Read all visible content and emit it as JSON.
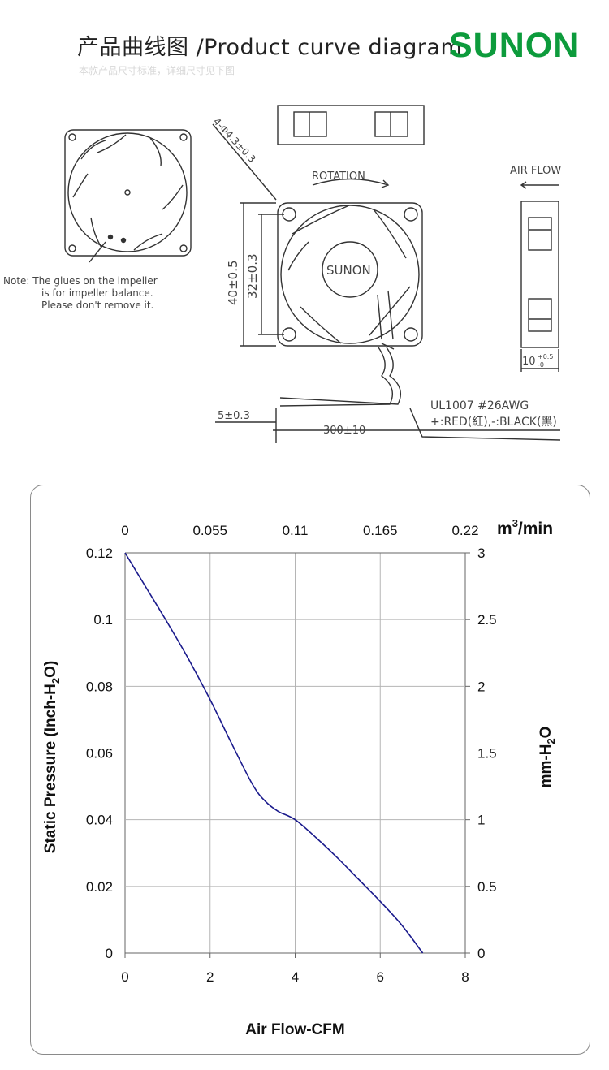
{
  "header": {
    "title": "产品曲线图 /Product curve diagram",
    "subtitle": "本款产品尺寸标准，详细尺寸见下图",
    "logo": "SUNON"
  },
  "drawing": {
    "note_lines": [
      "Note: The glues on the impeller",
      "is for impeller balance.",
      "Please don't remove it."
    ],
    "hole_label": "4-Φ4.3±0.3",
    "rotation_label": "ROTATION",
    "fan_brand": "SUNON",
    "dim_outer": "40±0.5",
    "dim_inner": "32±0.3",
    "air_flow_label": "AIR FLOW",
    "dim_depth": "10",
    "dim_depth_tol": "+0.5",
    "dim_depth_tol_low": "-0",
    "dim_lead": "5±0.3",
    "dim_cable": "300±10",
    "cable_spec": "UL1007  #26AWG",
    "cable_colors": "+:RED(紅),-:BLACK(黑)"
  },
  "chart_data": {
    "type": "line",
    "title": "",
    "xlabel": "Air Flow-CFM",
    "ylabel": "Static Pressure (Inch-H2O)",
    "x2label": "m3/min",
    "y2label": "mm-H2O",
    "xlim": [
      0,
      8
    ],
    "ylim": [
      0,
      0.12
    ],
    "x2lim": [
      0,
      0.22
    ],
    "y2lim": [
      0,
      3
    ],
    "x_ticks": [
      "0",
      "2",
      "4",
      "6",
      "8"
    ],
    "y_ticks": [
      "0",
      "0.02",
      "0.04",
      "0.06",
      "0.08",
      "0.1",
      "0.12"
    ],
    "x2_ticks": [
      "0",
      "0.055",
      "0.11",
      "0.165",
      "0.22"
    ],
    "y2_ticks": [
      "0",
      "0.5",
      "1",
      "1.5",
      "2",
      "2.5",
      "3"
    ],
    "grid": true,
    "series": [
      {
        "color": "#1a1a8c",
        "x": [
          0,
          0.5,
          1.0,
          1.5,
          2.0,
          2.5,
          3.0,
          3.3,
          3.6,
          4.0,
          4.5,
          5.0,
          5.5,
          6.0,
          6.5,
          7.0
        ],
        "y": [
          0.12,
          0.1095,
          0.099,
          0.088,
          0.076,
          0.063,
          0.0505,
          0.0455,
          0.0425,
          0.04,
          0.0345,
          0.0285,
          0.022,
          0.0155,
          0.0085,
          0.0
        ]
      }
    ]
  }
}
